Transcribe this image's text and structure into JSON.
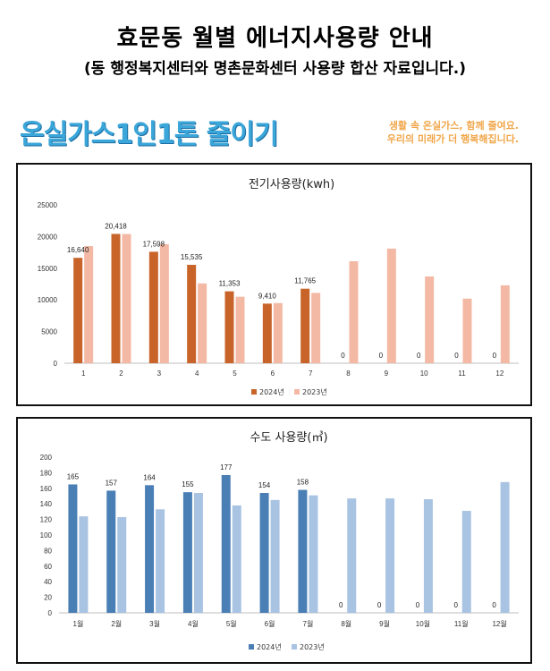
{
  "header": {
    "title": "효문동 월별 에너지사용량 안내",
    "subtitle": "(동 행정복지센터와 명촌문화센터 사용량 합산 자료입니다.)"
  },
  "banner": {
    "logo_text": "온실가스1인1톤 줄이기",
    "slogan_line1": "생활 속 온실가스, 함께 줄여요.",
    "slogan_line2": "우리의 미래가 더 행복해집니다."
  },
  "colors": {
    "elec_2024": "#c8642a",
    "elec_2023": "#f4b9a4",
    "water_2024": "#4a7fb5",
    "water_2023": "#a9c3e2",
    "logo": "#3aa6d9",
    "slogan": "#f0a64a"
  },
  "chart_data": [
    {
      "type": "bar",
      "title": "전기사용량(kwh)",
      "categories": [
        "1",
        "2",
        "3",
        "4",
        "5",
        "6",
        "7",
        "8",
        "9",
        "10",
        "11",
        "12"
      ],
      "ylim": [
        0,
        25000
      ],
      "yticks": [
        0,
        5000,
        10000,
        15000,
        20000,
        25000
      ],
      "series": [
        {
          "name": "2024년",
          "values": [
            16640,
            20418,
            17598,
            15535,
            11353,
            9410,
            11765,
            0,
            0,
            0,
            0,
            0
          ],
          "labels": [
            "16,640",
            "20,418",
            "17,598",
            "15,535",
            "11,353",
            "9,410",
            "11,765",
            "0",
            "0",
            "0",
            "0",
            "0"
          ]
        },
        {
          "name": "2023년",
          "values": [
            18500,
            20400,
            18800,
            12600,
            10500,
            9500,
            11100,
            16100,
            18100,
            13700,
            10200,
            12300
          ]
        }
      ],
      "legend": "bottom",
      "grid": false
    },
    {
      "type": "bar",
      "title": "수도 사용량(㎥)",
      "categories": [
        "1월",
        "2월",
        "3월",
        "4월",
        "5월",
        "6월",
        "7월",
        "8월",
        "9월",
        "10월",
        "11월",
        "12월"
      ],
      "ylim": [
        0,
        200
      ],
      "yticks": [
        0,
        20,
        40,
        60,
        80,
        100,
        120,
        140,
        160,
        180,
        200
      ],
      "series": [
        {
          "name": "2024년",
          "values": [
            165,
            157,
            164,
            155,
            177,
            154,
            158,
            0,
            0,
            0,
            0,
            0
          ],
          "labels": [
            "165",
            "157",
            "164",
            "155",
            "177",
            "154",
            "158",
            "0",
            "0",
            "0",
            "0",
            "0"
          ]
        },
        {
          "name": "2023년",
          "values": [
            124,
            123,
            133,
            154,
            138,
            145,
            151,
            147,
            147,
            146,
            131,
            168
          ]
        }
      ],
      "legend": "bottom",
      "grid": false
    }
  ]
}
